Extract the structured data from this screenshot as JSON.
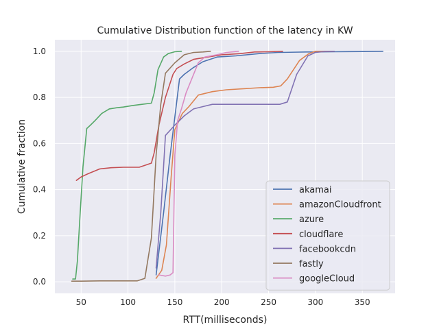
{
  "chart_data": {
    "type": "line",
    "title": "Cumulative Distribution function of the latency in KW",
    "xlabel": "RTT(milliseconds)",
    "ylabel": "Cumulative fraction",
    "xlim": [
      22,
      385
    ],
    "ylim": [
      -0.05,
      1.05
    ],
    "xticks": [
      50,
      100,
      150,
      200,
      250,
      300,
      350
    ],
    "yticks": [
      0.0,
      0.2,
      0.4,
      0.6,
      0.8,
      1.0
    ],
    "grid": true,
    "background": "#eaeaf2",
    "legend_position": "lower-right",
    "series": [
      {
        "name": "akamai",
        "color": "#4c72b0",
        "x": [
          130,
          138,
          145,
          155,
          160,
          170,
          180,
          195,
          215,
          240,
          260,
          290,
          320,
          350,
          372
        ],
        "y": [
          0.03,
          0.3,
          0.55,
          0.88,
          0.9,
          0.93,
          0.955,
          0.975,
          0.98,
          0.99,
          0.995,
          0.997,
          0.998,
          0.999,
          1.0
        ]
      },
      {
        "name": "amazonCloudfront",
        "color": "#dd8452",
        "x": [
          130,
          136,
          141,
          146,
          150,
          158,
          165,
          175,
          190,
          205,
          225,
          240,
          255,
          263,
          270,
          283,
          293,
          300,
          320
        ],
        "y": [
          0.015,
          0.05,
          0.16,
          0.45,
          0.66,
          0.73,
          0.76,
          0.81,
          0.825,
          0.833,
          0.838,
          0.842,
          0.844,
          0.85,
          0.88,
          0.96,
          0.99,
          1.0,
          1.0
        ]
      },
      {
        "name": "azure",
        "color": "#55a868",
        "x": [
          41,
          44,
          46,
          49,
          52,
          56,
          60,
          65,
          72,
          80,
          88,
          95,
          105,
          115,
          125,
          128,
          132,
          138,
          143,
          150,
          157
        ],
        "y": [
          0.012,
          0.012,
          0.09,
          0.3,
          0.5,
          0.665,
          0.68,
          0.7,
          0.73,
          0.75,
          0.755,
          0.758,
          0.765,
          0.77,
          0.775,
          0.82,
          0.92,
          0.975,
          0.99,
          0.998,
          1.0
        ]
      },
      {
        "name": "cloudflare",
        "color": "#c44e52",
        "x": [
          45,
          50,
          58,
          70,
          82,
          95,
          107,
          112,
          118,
          125,
          128,
          133,
          140,
          148,
          152,
          160,
          170,
          185,
          200,
          220,
          235,
          250,
          265
        ],
        "y": [
          0.44,
          0.455,
          0.47,
          0.49,
          0.495,
          0.497,
          0.497,
          0.497,
          0.505,
          0.515,
          0.56,
          0.68,
          0.8,
          0.9,
          0.925,
          0.945,
          0.965,
          0.975,
          0.985,
          0.99,
          0.997,
          0.998,
          1.0
        ]
      },
      {
        "name": "facebookcdn",
        "color": "#8172b3",
        "x": [
          130,
          135,
          140,
          150,
          160,
          170,
          180,
          190,
          200,
          230,
          262,
          270,
          280,
          292,
          300,
          310,
          320
        ],
        "y": [
          0.06,
          0.3,
          0.635,
          0.68,
          0.72,
          0.75,
          0.76,
          0.77,
          0.77,
          0.77,
          0.77,
          0.78,
          0.9,
          0.98,
          0.995,
          0.999,
          1.0
        ]
      },
      {
        "name": "fastly",
        "color": "#937860",
        "x": [
          40,
          50,
          70,
          90,
          110,
          118,
          125,
          130,
          135,
          140,
          150,
          160,
          170,
          180,
          188
        ],
        "y": [
          0.003,
          0.003,
          0.004,
          0.004,
          0.004,
          0.015,
          0.19,
          0.55,
          0.77,
          0.905,
          0.95,
          0.985,
          0.995,
          0.997,
          1.0
        ]
      },
      {
        "name": "googleCloud",
        "color": "#da8bc3",
        "x": [
          133,
          140,
          145,
          148,
          150,
          153,
          157,
          162,
          168,
          175,
          182,
          195,
          205,
          218
        ],
        "y": [
          0.03,
          0.025,
          0.03,
          0.04,
          0.55,
          0.7,
          0.75,
          0.82,
          0.88,
          0.95,
          0.975,
          0.985,
          0.995,
          1.0
        ]
      }
    ]
  }
}
